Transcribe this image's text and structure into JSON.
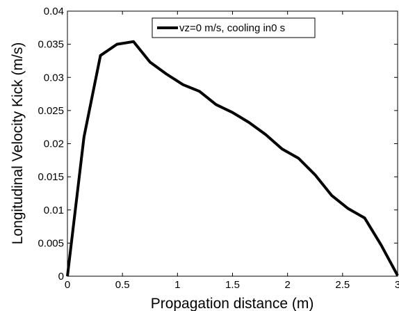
{
  "chart_data": {
    "type": "line",
    "title": "",
    "xlabel": "Propagation distance (m)",
    "ylabel": "Longitudinal Velocity Kick (m/s)",
    "xlim": [
      0,
      3
    ],
    "ylim": [
      0,
      0.04
    ],
    "x_ticks": [
      0,
      0.5,
      1,
      1.5,
      2,
      2.5,
      3
    ],
    "x_tick_labels": [
      "0",
      "0.5",
      "1",
      "1.5",
      "2",
      "2.5",
      "3"
    ],
    "y_ticks": [
      0,
      0.005,
      0.01,
      0.015,
      0.02,
      0.025,
      0.03,
      0.035,
      0.04
    ],
    "y_tick_labels": [
      "0",
      "0.005",
      "0.01",
      "0.015",
      "0.02",
      "0.025",
      "0.03",
      "0.035",
      "0.04"
    ],
    "grid": false,
    "legend_position": "top-center",
    "series": [
      {
        "name": "vz=0 m/s, cooling in0 s",
        "color": "#000000",
        "x": [
          0,
          0.15,
          0.3,
          0.45,
          0.6,
          0.75,
          0.9,
          1.05,
          1.2,
          1.35,
          1.5,
          1.65,
          1.8,
          1.95,
          2.1,
          2.25,
          2.4,
          2.55,
          2.7,
          2.85,
          3.0
        ],
        "y": [
          0,
          0.021,
          0.0333,
          0.035,
          0.0354,
          0.0323,
          0.0305,
          0.0289,
          0.0279,
          0.0259,
          0.0247,
          0.0232,
          0.0214,
          0.0192,
          0.0178,
          0.0153,
          0.0122,
          0.0102,
          0.0088,
          0.0047,
          0.0001
        ]
      }
    ]
  }
}
